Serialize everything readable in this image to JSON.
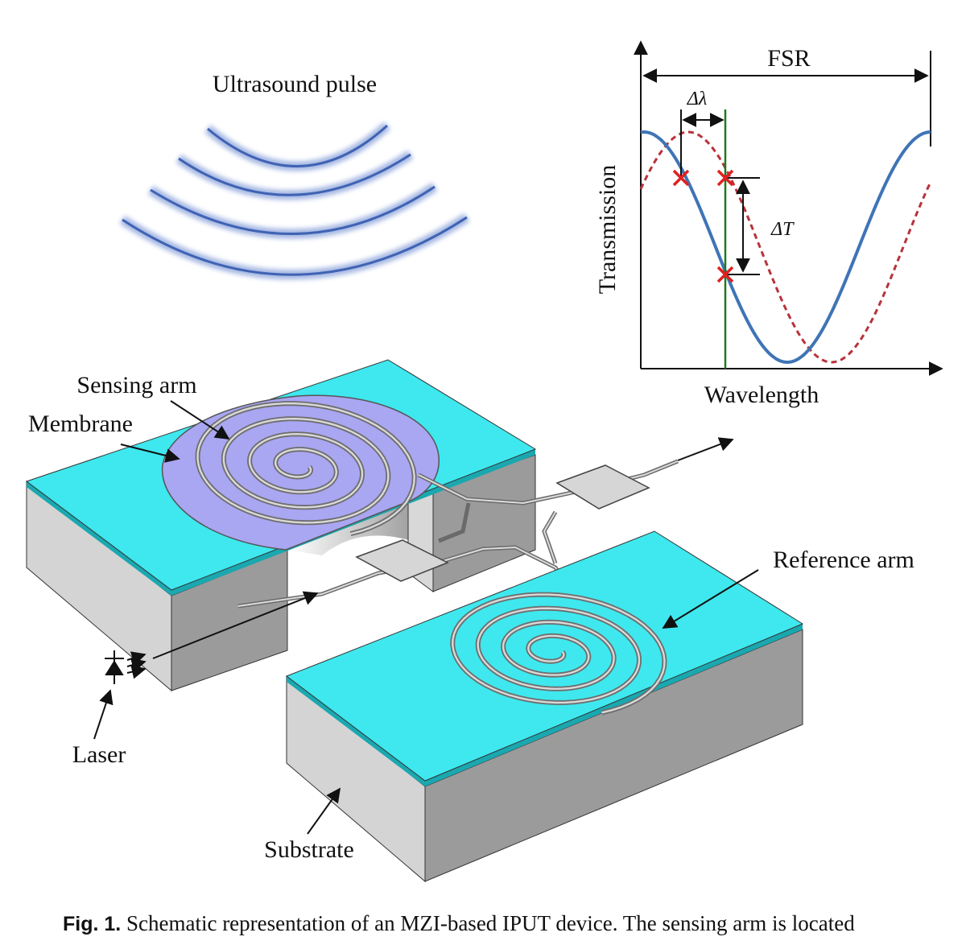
{
  "labels": {
    "ultrasound_pulse": "Ultrasound pulse",
    "sensing_arm": "Sensing arm",
    "membrane": "Membrane",
    "reference_arm": "Reference arm",
    "laser": "Laser",
    "substrate": "Substrate"
  },
  "chart": {
    "fsr": "FSR",
    "delta_lambda": "Δλ",
    "delta_t": "ΔT",
    "ylabel": "Transmission",
    "xlabel": "Wavelength"
  },
  "caption": {
    "fig_number": "Fig. 1.",
    "text": "Schematic representation of an MZI-based IPUT device.  The sensing arm is located"
  },
  "colors": {
    "substrate_top": "#3ee8ee",
    "membrane": "#a9a6f2",
    "curve_solid": "#3f74b6",
    "curve_dashed": "#b8323a",
    "marker": "#e02020",
    "green_line": "#1d7a1d",
    "wave": "#3f63b4"
  }
}
